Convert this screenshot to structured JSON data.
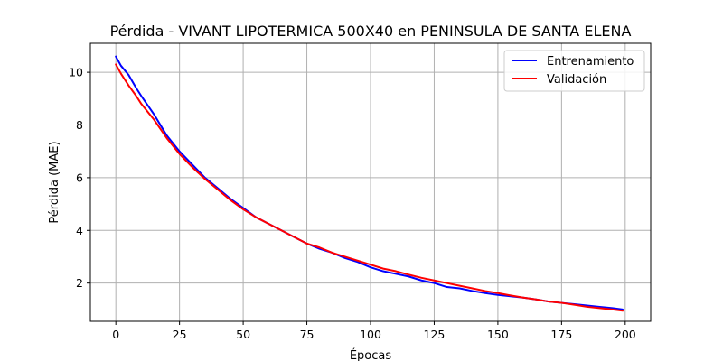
{
  "chart_data": {
    "type": "line",
    "title": "Pérdida - VIVANT LIPOTERMICA 500X40 en PENINSULA DE SANTA ELENA",
    "xlabel": "Épocas",
    "ylabel": "Pérdida (MAE)",
    "xlim": [
      -10,
      210
    ],
    "ylim": [
      0.55,
      11.1
    ],
    "xticks": [
      0,
      25,
      50,
      75,
      100,
      125,
      150,
      175,
      200
    ],
    "yticks": [
      2,
      4,
      6,
      8,
      10
    ],
    "grid": true,
    "legend_position": "top-right",
    "series": [
      {
        "name": "Entrenamiento",
        "color": "#0000ff",
        "x": [
          0,
          2,
          5,
          8,
          10,
          15,
          20,
          25,
          30,
          35,
          40,
          45,
          50,
          55,
          60,
          65,
          70,
          75,
          80,
          85,
          90,
          95,
          100,
          105,
          110,
          115,
          120,
          125,
          130,
          135,
          140,
          145,
          150,
          155,
          160,
          165,
          170,
          175,
          180,
          185,
          190,
          195,
          199
        ],
        "y": [
          10.6,
          10.25,
          9.9,
          9.4,
          9.1,
          8.4,
          7.6,
          7.0,
          6.5,
          6.0,
          5.6,
          5.2,
          4.85,
          4.5,
          4.25,
          4.0,
          3.75,
          3.5,
          3.3,
          3.15,
          2.95,
          2.8,
          2.6,
          2.45,
          2.35,
          2.25,
          2.1,
          2.0,
          1.85,
          1.8,
          1.7,
          1.62,
          1.55,
          1.5,
          1.45,
          1.38,
          1.3,
          1.25,
          1.2,
          1.15,
          1.1,
          1.05,
          1.0
        ]
      },
      {
        "name": "Validación",
        "color": "#ff0000",
        "x": [
          0,
          2,
          5,
          8,
          10,
          15,
          20,
          25,
          30,
          35,
          40,
          45,
          50,
          55,
          60,
          65,
          70,
          75,
          80,
          85,
          90,
          95,
          100,
          105,
          110,
          115,
          120,
          125,
          130,
          135,
          140,
          145,
          150,
          155,
          160,
          165,
          170,
          175,
          180,
          185,
          190,
          195,
          199
        ],
        "y": [
          10.3,
          9.95,
          9.5,
          9.1,
          8.8,
          8.2,
          7.5,
          6.9,
          6.4,
          5.95,
          5.55,
          5.15,
          4.8,
          4.5,
          4.25,
          4.0,
          3.75,
          3.5,
          3.35,
          3.15,
          3.0,
          2.85,
          2.7,
          2.55,
          2.45,
          2.32,
          2.2,
          2.1,
          2.0,
          1.9,
          1.8,
          1.7,
          1.62,
          1.53,
          1.45,
          1.38,
          1.3,
          1.25,
          1.18,
          1.1,
          1.05,
          1.0,
          0.95
        ]
      }
    ]
  }
}
